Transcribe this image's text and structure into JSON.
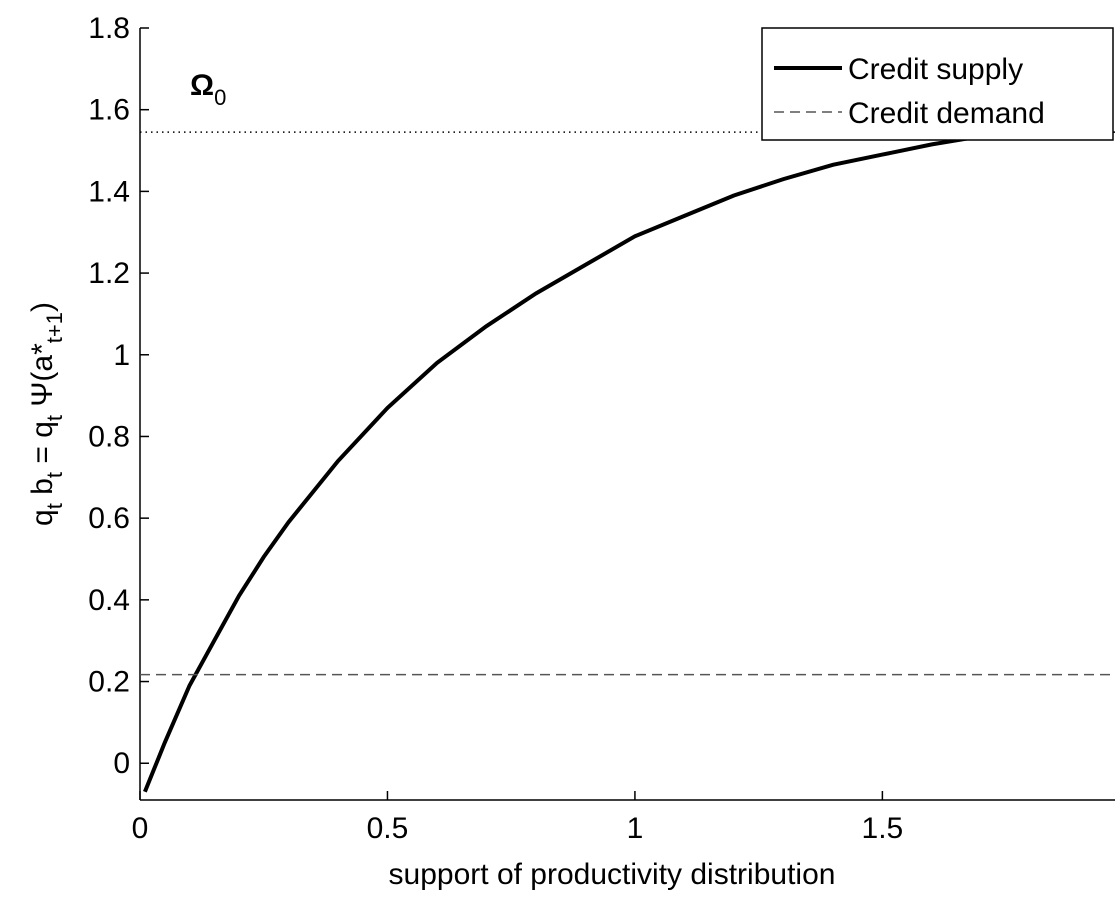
{
  "chart_data": {
    "type": "line",
    "xlabel": "support of productivity distribution",
    "ylabel": [
      "q",
      "t",
      " b",
      "t",
      " = q",
      "t",
      " Ψ(a*",
      "t+1",
      ")"
    ],
    "annotation": [
      "Ω",
      "0"
    ],
    "annotation_level": 1.545,
    "xlim": [
      0,
      1.97
    ],
    "ylim": [
      -0.09,
      1.8
    ],
    "xticks": [
      0,
      0.5,
      1,
      1.5
    ],
    "yticks": [
      0,
      0.2,
      0.4,
      0.6,
      0.8,
      1,
      1.2,
      1.4,
      1.6,
      1.8
    ],
    "legend": "upper right",
    "series": [
      {
        "name": "Credit supply",
        "color": "#000000",
        "x": [
          0.01,
          0.03,
          0.05,
          0.1,
          0.15,
          0.2,
          0.25,
          0.3,
          0.4,
          0.5,
          0.6,
          0.7,
          0.8,
          0.9,
          1.0,
          1.1,
          1.2,
          1.3,
          1.4,
          1.5,
          1.6,
          1.7,
          1.8
        ],
        "values": [
          -0.07,
          -0.01,
          0.05,
          0.19,
          0.3,
          0.41,
          0.505,
          0.59,
          0.74,
          0.87,
          0.98,
          1.07,
          1.15,
          1.22,
          1.29,
          1.34,
          1.39,
          1.43,
          1.465,
          1.49,
          1.515,
          1.535,
          1.55
        ]
      },
      {
        "name": "Credit demand",
        "color": "#555555",
        "level": 0.217
      }
    ]
  }
}
